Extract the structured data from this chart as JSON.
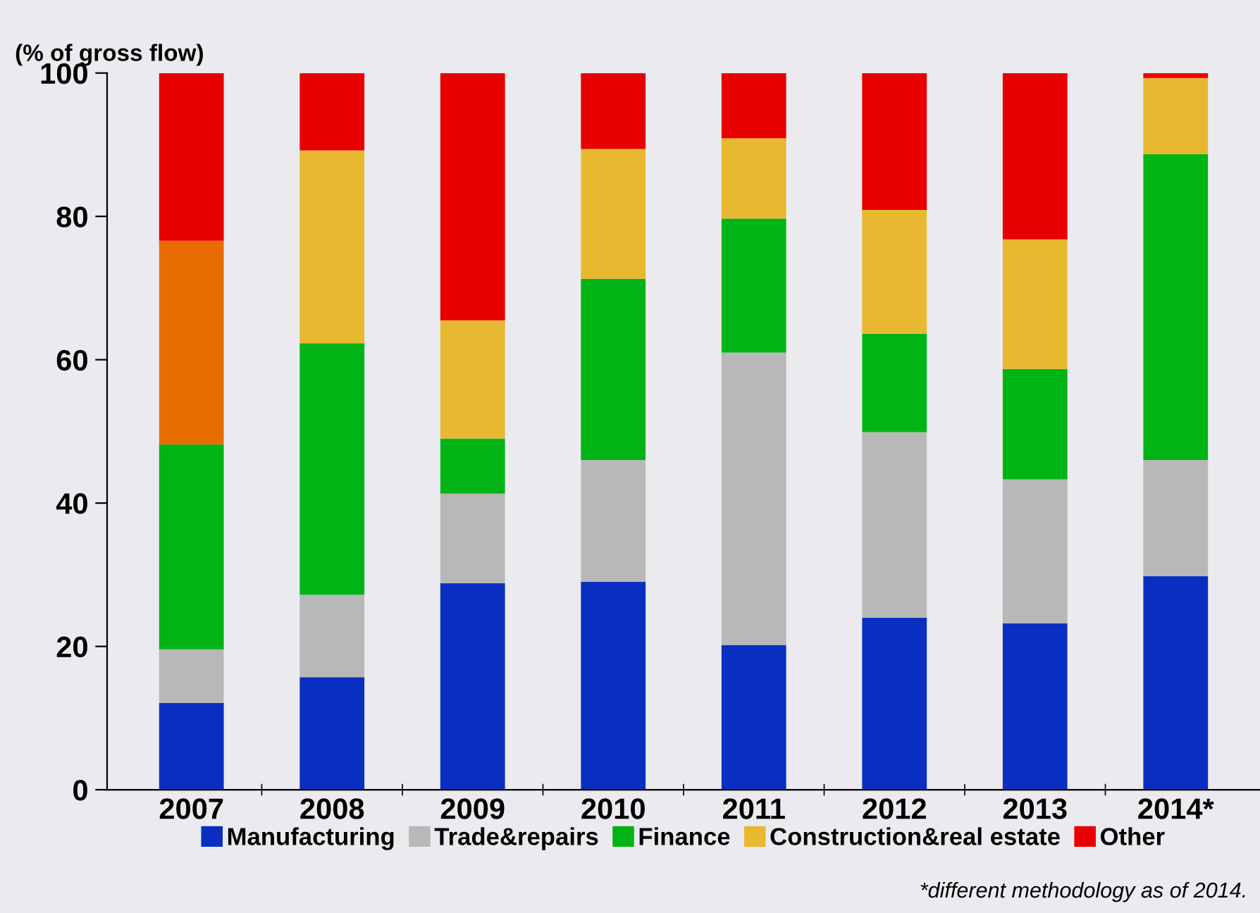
{
  "chart_data": {
    "type": "bar",
    "stacked": true,
    "ylabel": "(% of gross flow)",
    "categories": [
      "2007",
      "2008",
      "2009",
      "2010",
      "2011",
      "2012",
      "2013",
      "2014*"
    ],
    "series": [
      {
        "name": "Manufacturing",
        "color": "#0a2fc0",
        "values": [
          12.1,
          15.7,
          28.8,
          29.0,
          20.2,
          24.0,
          23.2,
          29.8
        ]
      },
      {
        "name": "Trade&repairs",
        "color": "#b8b8b8",
        "values": [
          7.5,
          11.5,
          12.5,
          17.0,
          40.8,
          25.9,
          20.1,
          16.2
        ]
      },
      {
        "name": "Finance",
        "color": "#00b416",
        "values": [
          28.6,
          35.1,
          7.7,
          25.3,
          18.7,
          13.7,
          15.4,
          42.7
        ]
      },
      {
        "name": "Construction&real estate",
        "color": "#e8b830",
        "colors": [
          "#e86c00",
          "#e8b830",
          "#e8b830",
          "#e8b830",
          "#e8b830",
          "#e8b830",
          "#e8b830",
          "#e8b830"
        ],
        "values": [
          28.4,
          26.9,
          16.5,
          18.1,
          11.2,
          17.3,
          18.1,
          10.6
        ]
      },
      {
        "name": "Other",
        "color": "#e80000",
        "values": [
          23.4,
          10.8,
          34.5,
          10.6,
          9.1,
          19.1,
          23.2,
          0.7
        ]
      }
    ],
    "ylim": [
      0,
      100
    ],
    "yticks": [
      0,
      20,
      40,
      60,
      80,
      100
    ],
    "grid": false,
    "legend": "bottom",
    "annotations": [
      "*different methodology as of 2014."
    ]
  }
}
